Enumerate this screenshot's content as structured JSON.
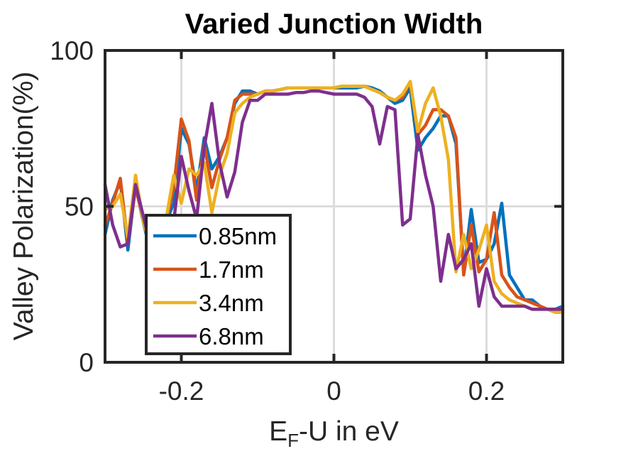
{
  "chart_data": {
    "type": "line",
    "title": "Varied Junction Width",
    "xlabel_main": "E",
    "xlabel_sub": "F",
    "xlabel_rest": "-U in eV",
    "ylabel": "Valley Polarization(%)",
    "xlim": [
      -0.3,
      0.3
    ],
    "ylim": [
      0,
      100
    ],
    "xticks": [
      -0.2,
      0,
      0.2
    ],
    "xtick_labels": [
      "-0.2",
      "0",
      "0.2"
    ],
    "yticks": [
      0,
      50,
      100
    ],
    "ytick_labels": [
      "0",
      "50",
      "100"
    ],
    "grid": true,
    "legend_position": "bottom-left",
    "x": [
      -0.3,
      -0.29,
      -0.28,
      -0.27,
      -0.26,
      -0.25,
      -0.24,
      -0.23,
      -0.22,
      -0.21,
      -0.2,
      -0.19,
      -0.18,
      -0.17,
      -0.16,
      -0.15,
      -0.14,
      -0.13,
      -0.12,
      -0.11,
      -0.1,
      -0.09,
      -0.08,
      -0.07,
      -0.06,
      -0.05,
      -0.04,
      -0.03,
      -0.02,
      -0.01,
      0,
      0.01,
      0.02,
      0.03,
      0.04,
      0.05,
      0.06,
      0.07,
      0.08,
      0.09,
      0.1,
      0.11,
      0.12,
      0.13,
      0.14,
      0.15,
      0.16,
      0.17,
      0.18,
      0.19,
      0.2,
      0.21,
      0.22,
      0.23,
      0.24,
      0.25,
      0.26,
      0.27,
      0.28,
      0.29,
      0.3
    ],
    "series": [
      {
        "name": "0.85nm",
        "color": "#0072BD",
        "values": [
          41,
          52,
          58,
          36,
          57,
          45,
          35,
          37,
          45,
          51,
          75,
          70,
          55,
          72,
          62,
          66,
          72,
          83,
          87,
          87,
          86,
          87,
          87,
          87.5,
          88,
          88,
          88,
          88,
          88,
          88,
          88,
          88,
          88,
          88,
          88.5,
          88,
          87,
          85,
          83,
          84,
          88,
          68,
          72,
          75,
          79,
          79,
          70,
          29,
          49,
          32,
          33,
          38,
          51,
          28,
          24,
          20,
          20,
          18,
          17,
          17,
          18
        ]
      },
      {
        "name": "1.7nm",
        "color": "#D95319",
        "values": [
          44,
          51,
          59,
          38,
          56,
          46,
          36,
          38,
          45,
          56,
          78,
          71,
          52,
          70,
          56,
          65,
          72,
          84,
          86,
          86,
          86,
          87,
          87,
          87.5,
          88,
          88,
          88,
          88,
          88,
          88,
          88,
          88.5,
          88.5,
          88.5,
          88.5,
          87.5,
          86.5,
          85,
          84,
          85,
          90,
          73,
          76,
          81,
          81,
          79,
          72,
          28,
          44,
          29,
          33,
          48,
          28,
          24,
          21,
          20,
          19,
          18,
          17,
          17,
          17
        ]
      },
      {
        "name": "3.4nm",
        "color": "#EDB120",
        "values": [
          49,
          50,
          54,
          40,
          60,
          45,
          37,
          39,
          46,
          60,
          51,
          62,
          60,
          64,
          48,
          60,
          67,
          80,
          83,
          85,
          86,
          87,
          87,
          87.5,
          88,
          88,
          88,
          88,
          88,
          88,
          88,
          88.5,
          88.5,
          88.5,
          88.5,
          87.5,
          86.5,
          85,
          84,
          86,
          90,
          74,
          83,
          88,
          79,
          65,
          29,
          41,
          30,
          36,
          44,
          26,
          22,
          20,
          19,
          18,
          17,
          17,
          17,
          16,
          16
        ]
      },
      {
        "name": "6.8nm",
        "color": "#7E2F8E",
        "values": [
          57,
          44,
          37,
          38,
          57,
          47,
          37,
          42,
          43,
          45,
          66,
          55,
          46,
          69,
          83,
          64,
          53,
          61,
          77,
          84,
          84,
          86,
          86,
          86,
          86,
          86.5,
          86.5,
          87,
          87,
          86.5,
          86,
          86,
          86,
          86,
          85,
          82,
          70,
          82,
          81,
          44,
          46,
          73,
          60,
          50,
          26,
          41,
          30,
          33,
          38,
          18,
          30,
          21,
          18,
          18,
          18,
          18,
          17,
          17,
          17,
          17,
          17
        ]
      }
    ]
  }
}
